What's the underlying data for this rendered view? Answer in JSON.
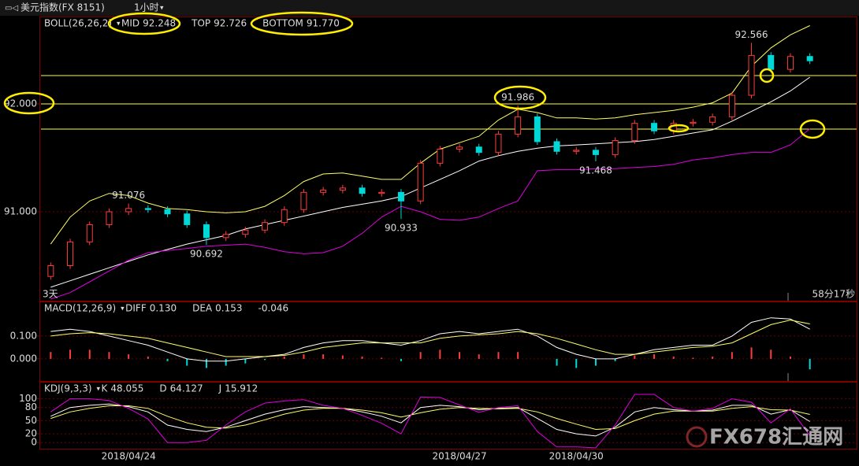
{
  "header": {
    "symbol": "美元指数(FX 8151)",
    "period": "1小时"
  },
  "watermark": "FX678汇通网",
  "chart_data": [
    {
      "type": "candlestick",
      "indicator": "BOLL(26,26,2)",
      "categories": [
        null,
        null,
        null,
        null,
        "2018/04/24",
        null,
        null,
        null,
        null,
        null,
        null,
        null,
        null,
        null,
        null,
        null,
        null,
        null,
        null,
        null,
        null,
        "2018/04/27",
        null,
        null,
        null,
        null,
        null,
        "2018/04/30",
        null,
        null,
        null,
        null,
        null,
        null,
        null,
        null,
        null,
        null,
        null,
        null
      ],
      "open": [
        90.4,
        90.5,
        90.72,
        90.88,
        91.0,
        91.03,
        91.02,
        90.98,
        90.88,
        90.76,
        90.79,
        90.83,
        90.9,
        91.02,
        91.18,
        91.2,
        91.22,
        91.17,
        91.18,
        91.1,
        91.45,
        91.58,
        91.6,
        91.55,
        91.72,
        91.88,
        91.65,
        91.56,
        91.57,
        91.53,
        91.66,
        91.82,
        91.75,
        91.82,
        91.83,
        91.88,
        92.08,
        92.45,
        92.32,
        92.44
      ],
      "high": [
        90.53,
        90.75,
        90.91,
        91.03,
        91.076,
        91.06,
        91.05,
        91.01,
        90.91,
        90.82,
        90.86,
        90.93,
        91.05,
        91.21,
        91.23,
        91.25,
        91.25,
        91.21,
        91.21,
        91.48,
        91.61,
        91.63,
        91.63,
        91.75,
        91.986,
        91.91,
        91.68,
        91.6,
        91.6,
        91.69,
        91.85,
        91.85,
        91.85,
        91.86,
        91.91,
        92.11,
        92.566,
        92.48,
        92.47,
        92.47
      ],
      "low": [
        90.37,
        90.47,
        90.69,
        90.85,
        90.97,
        90.99,
        90.95,
        90.85,
        90.692,
        90.73,
        90.76,
        90.8,
        90.87,
        90.99,
        91.15,
        91.17,
        91.14,
        91.14,
        90.933,
        91.07,
        91.42,
        91.55,
        91.52,
        91.52,
        91.69,
        91.62,
        91.53,
        91.53,
        91.468,
        91.5,
        91.63,
        91.72,
        91.72,
        91.79,
        91.8,
        91.85,
        92.05,
        92.29,
        92.29,
        92.37
      ],
      "close": [
        90.5,
        90.72,
        90.88,
        91.0,
        91.03,
        91.02,
        90.98,
        90.88,
        90.76,
        90.79,
        90.83,
        90.9,
        91.02,
        91.18,
        91.2,
        91.22,
        91.17,
        91.18,
        91.1,
        91.45,
        91.58,
        91.6,
        91.55,
        91.72,
        91.88,
        91.65,
        91.56,
        91.57,
        91.53,
        91.66,
        91.82,
        91.75,
        91.82,
        91.83,
        91.88,
        92.08,
        92.45,
        92.32,
        92.44,
        92.4
      ],
      "high_labels": [
        null,
        null,
        null,
        null,
        "91.076",
        null,
        null,
        null,
        null,
        null,
        null,
        null,
        null,
        null,
        null,
        null,
        null,
        null,
        null,
        null,
        null,
        null,
        null,
        null,
        "91.986",
        null,
        null,
        null,
        null,
        null,
        null,
        null,
        null,
        null,
        null,
        null,
        "92.566",
        null,
        null,
        null
      ],
      "low_labels": [
        null,
        null,
        null,
        null,
        null,
        null,
        null,
        null,
        "90.692",
        null,
        null,
        null,
        null,
        null,
        null,
        null,
        null,
        null,
        "90.933",
        null,
        null,
        null,
        null,
        null,
        null,
        null,
        null,
        null,
        "91.468",
        null,
        null,
        null,
        null,
        null,
        null,
        null,
        null,
        null,
        null,
        null
      ],
      "up_color": "#ff3c3c",
      "down_color": "#00d8d8",
      "series": [
        {
          "name": "MID",
          "color": "#ffffff",
          "values": [
            90.3,
            90.36,
            90.42,
            90.48,
            90.54,
            90.6,
            90.65,
            90.7,
            90.74,
            90.78,
            90.84,
            90.88,
            90.92,
            90.96,
            91.0,
            91.04,
            91.07,
            91.1,
            91.14,
            91.22,
            91.3,
            91.38,
            91.47,
            91.52,
            91.56,
            91.59,
            91.61,
            91.62,
            91.63,
            91.64,
            91.65,
            91.67,
            91.7,
            91.73,
            91.76,
            91.84,
            91.93,
            92.02,
            92.12,
            92.248
          ]
        },
        {
          "name": "TOP",
          "color": "#ffff66",
          "values": [
            90.7,
            90.95,
            91.1,
            91.17,
            91.15,
            91.08,
            91.03,
            91.02,
            91.0,
            90.99,
            91.0,
            91.05,
            91.15,
            91.28,
            91.35,
            91.36,
            91.33,
            91.3,
            91.3,
            91.45,
            91.58,
            91.64,
            91.7,
            91.85,
            91.95,
            91.92,
            91.87,
            91.87,
            91.86,
            91.87,
            91.9,
            91.92,
            91.94,
            91.97,
            92.01,
            92.1,
            92.35,
            92.52,
            92.64,
            92.726
          ]
        },
        {
          "name": "BOTTOM",
          "color": "#e000e0",
          "values": [
            90.19,
            90.25,
            90.35,
            90.45,
            90.55,
            90.62,
            90.64,
            90.66,
            90.68,
            90.69,
            90.7,
            90.67,
            90.63,
            90.61,
            90.62,
            90.68,
            90.8,
            90.95,
            91.05,
            91.0,
            90.93,
            90.92,
            90.95,
            91.03,
            91.1,
            91.38,
            91.39,
            91.39,
            91.4,
            91.4,
            91.41,
            91.42,
            91.44,
            91.48,
            91.5,
            91.53,
            91.55,
            91.55,
            91.62,
            91.77
          ],
          "value_labels": [
            null,
            null,
            null,
            null,
            null,
            null,
            null,
            null,
            null,
            null,
            null,
            null,
            null,
            null,
            null,
            null,
            null,
            null,
            null,
            null,
            null,
            null,
            null,
            null,
            null,
            null,
            null,
            null,
            null,
            null,
            null,
            null,
            null,
            null,
            null,
            null,
            null,
            null,
            null,
            "91.770"
          ]
        }
      ],
      "hlines": [
        92.263,
        92,
        91.766
      ],
      "hline_color": "#ffff33",
      "ylim": [
        90.175,
        92.803
      ],
      "yticks": [
        {
          "value": 91,
          "label": "91.000"
        },
        {
          "value": 92,
          "label": "92.000"
        }
      ],
      "grid": true,
      "range_label": "3天",
      "timer": "58分17秒"
    },
    {
      "type": "macd",
      "indicator": "MACD(12,26,9)",
      "histogram": [
        0.03,
        0.04,
        0.04,
        0.03,
        0.02,
        0.01,
        -0.01,
        -0.03,
        -0.04,
        -0.03,
        -0.02,
        -0.005,
        0.01,
        0.02,
        0.02,
        0.015,
        0.01,
        0.005,
        -0.01,
        0.03,
        0.04,
        0.03,
        0.02,
        0.03,
        0.03,
        0,
        -0.03,
        -0.04,
        -0.03,
        -0.01,
        0.015,
        0.02,
        0.01,
        0.005,
        0.01,
        0.03,
        0.05,
        0.04,
        0.01,
        -0.046
      ],
      "up_color": "#ff3c3c",
      "down_color": "#00d8d8",
      "series": [
        {
          "name": "DIFF",
          "color": "#ffffff",
          "values": [
            0.12,
            0.13,
            0.12,
            0.1,
            0.08,
            0.06,
            0.03,
            0,
            -0.01,
            -0.01,
            0,
            0.01,
            0.02,
            0.05,
            0.07,
            0.08,
            0.08,
            0.07,
            0.06,
            0.08,
            0.11,
            0.12,
            0.11,
            0.12,
            0.13,
            0.1,
            0.05,
            0.02,
            0,
            0,
            0.02,
            0.04,
            0.05,
            0.06,
            0.06,
            0.1,
            0.16,
            0.18,
            0.175,
            0.13
          ],
          "value_labels": [
            null,
            null,
            null,
            null,
            null,
            null,
            null,
            null,
            null,
            null,
            null,
            null,
            null,
            null,
            null,
            null,
            null,
            null,
            null,
            null,
            null,
            null,
            null,
            null,
            null,
            null,
            null,
            null,
            null,
            null,
            null,
            null,
            null,
            null,
            null,
            null,
            null,
            null,
            null,
            "0.130"
          ]
        },
        {
          "name": "DEA",
          "color": "#ffff66",
          "values": [
            0.1,
            0.11,
            0.115,
            0.11,
            0.1,
            0.09,
            0.07,
            0.05,
            0.03,
            0.01,
            0.01,
            0.01,
            0.015,
            0.03,
            0.05,
            0.06,
            0.07,
            0.07,
            0.07,
            0.07,
            0.09,
            0.1,
            0.105,
            0.11,
            0.12,
            0.11,
            0.09,
            0.065,
            0.04,
            0.02,
            0.02,
            0.03,
            0.04,
            0.05,
            0.055,
            0.07,
            0.11,
            0.15,
            0.17,
            0.153
          ]
        }
      ],
      "ylim": [
        -0.097,
        0.248
      ],
      "yticks": [
        {
          "value": 0.1,
          "label": "0.100"
        },
        {
          "value": 0,
          "label": "0.000"
        }
      ],
      "grid": true
    },
    {
      "type": "kdj",
      "indicator": "KDJ(9,3,3)",
      "series": [
        {
          "name": "K",
          "color": "#ffffff",
          "values": [
            60,
            80,
            85,
            88,
            82,
            70,
            40,
            30,
            25,
            35,
            50,
            65,
            75,
            82,
            80,
            78,
            70,
            60,
            45,
            80,
            85,
            82,
            75,
            78,
            80,
            55,
            30,
            20,
            15,
            35,
            70,
            80,
            75,
            72,
            74,
            85,
            85,
            65,
            75,
            48.055
          ]
        },
        {
          "name": "D",
          "color": "#ffff66",
          "values": [
            55,
            70,
            78,
            84,
            84,
            78,
            60,
            45,
            35,
            33,
            40,
            52,
            65,
            74,
            78,
            78,
            74,
            68,
            58,
            68,
            76,
            80,
            78,
            77,
            78,
            70,
            55,
            42,
            30,
            32,
            50,
            65,
            72,
            72,
            72,
            78,
            82,
            75,
            74,
            64.127
          ]
        },
        {
          "name": "J",
          "color": "#e000e0",
          "values": [
            70,
            100,
            100,
            96,
            78,
            54,
            0,
            0,
            5,
            40,
            70,
            90,
            95,
            98,
            85,
            78,
            62,
            44,
            20,
            104,
            103,
            86,
            69,
            80,
            84,
            25,
            -10,
            -10,
            -12,
            40,
            110,
            110,
            80,
            72,
            78,
            100,
            92,
            45,
            77,
            15.912
          ]
        }
      ],
      "ylim": [
        -14,
        137
      ],
      "yticks": [
        100,
        80,
        50,
        20,
        0
      ],
      "grid": true
    }
  ]
}
